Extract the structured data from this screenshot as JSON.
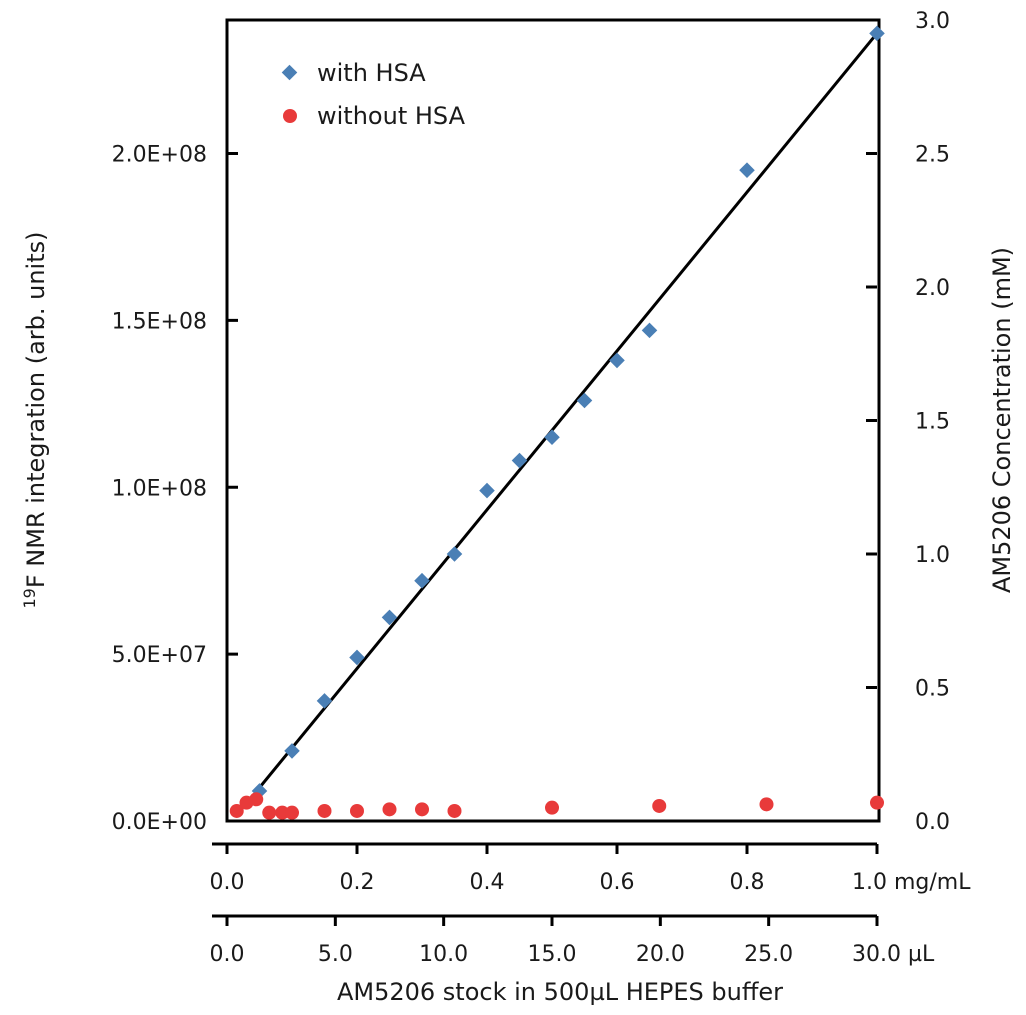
{
  "chart_data": {
    "type": "scatter",
    "left_axis": {
      "label_sup": "19",
      "label_main": "F NMR integration (arb. units)",
      "range": [
        0,
        240000000
      ],
      "ticks": [
        {
          "value": 0,
          "label": "0.0E+00"
        },
        {
          "value": 50000000,
          "label": "5.0E+07"
        },
        {
          "value": 100000000,
          "label": "1.0E+08"
        },
        {
          "value": 150000000,
          "label": "1.5E+08"
        },
        {
          "value": 200000000,
          "label": "2.0E+08"
        }
      ]
    },
    "right_axis": {
      "label": "AM5206 Concentration (mM)",
      "range": [
        0,
        3.0
      ],
      "ticks": [
        {
          "value": 0,
          "label": "0.0"
        },
        {
          "value": 0.5,
          "label": "0.5"
        },
        {
          "value": 1.0,
          "label": "1.0"
        },
        {
          "value": 1.5,
          "label": "1.5"
        },
        {
          "value": 2.0,
          "label": "2.0"
        },
        {
          "value": 2.5,
          "label": "2.5"
        },
        {
          "value": 3.0,
          "label": "3.0"
        }
      ]
    },
    "x_axis_mg": {
      "range": [
        0,
        1.0
      ],
      "ticks": [
        {
          "value": 0,
          "label": "0.0"
        },
        {
          "value": 0.2,
          "label": "0.2"
        },
        {
          "value": 0.4,
          "label": "0.4"
        },
        {
          "value": 0.6,
          "label": "0.6"
        },
        {
          "value": 0.8,
          "label": "0.8"
        },
        {
          "value": 1.0,
          "label": "1.0 mg/mL"
        }
      ]
    },
    "x_axis_ul": {
      "range": [
        0,
        30.0
      ],
      "ticks": [
        {
          "value": 0,
          "label": "0.0"
        },
        {
          "value": 5,
          "label": "5.0"
        },
        {
          "value": 10,
          "label": "10.0"
        },
        {
          "value": 15,
          "label": "15.0"
        },
        {
          "value": 20,
          "label": "20.0"
        },
        {
          "value": 25,
          "label": "25.0"
        },
        {
          "value": 30,
          "label": "30.0 µL"
        }
      ]
    },
    "xlabel": "AM5206 stock in 500µL HEPES buffer",
    "legend_position": "top-left",
    "series": [
      {
        "name": "with HSA",
        "marker": "diamond",
        "color": "#4a7fb5",
        "points": [
          {
            "x": 0.05,
            "y": 9000000
          },
          {
            "x": 0.1,
            "y": 21000000
          },
          {
            "x": 0.15,
            "y": 36000000
          },
          {
            "x": 0.2,
            "y": 49000000
          },
          {
            "x": 0.25,
            "y": 61000000
          },
          {
            "x": 0.3,
            "y": 72000000
          },
          {
            "x": 0.35,
            "y": 80000000
          },
          {
            "x": 0.4,
            "y": 99000000
          },
          {
            "x": 0.45,
            "y": 108000000
          },
          {
            "x": 0.5,
            "y": 115000000
          },
          {
            "x": 0.55,
            "y": 126000000
          },
          {
            "x": 0.6,
            "y": 138000000
          },
          {
            "x": 0.65,
            "y": 147000000
          },
          {
            "x": 0.8,
            "y": 195000000
          },
          {
            "x": 1.0,
            "y": 236000000
          }
        ]
      },
      {
        "name": "without HSA",
        "marker": "circle",
        "color": "#e83a3a",
        "points": [
          {
            "x": 0.015,
            "y": 3000000
          },
          {
            "x": 0.03,
            "y": 5500000
          },
          {
            "x": 0.045,
            "y": 6500000
          },
          {
            "x": 0.065,
            "y": 2500000
          },
          {
            "x": 0.085,
            "y": 2500000
          },
          {
            "x": 0.1,
            "y": 2500000
          },
          {
            "x": 0.15,
            "y": 3000000
          },
          {
            "x": 0.2,
            "y": 3000000
          },
          {
            "x": 0.25,
            "y": 3500000
          },
          {
            "x": 0.3,
            "y": 3500000
          },
          {
            "x": 0.35,
            "y": 3000000
          },
          {
            "x": 0.5,
            "y": 4000000
          },
          {
            "x": 0.665,
            "y": 4500000
          },
          {
            "x": 0.83,
            "y": 5000000
          },
          {
            "x": 1.0,
            "y": 5500000
          }
        ]
      }
    ],
    "fit_line": {
      "color": "#000000",
      "from": {
        "x": 0.05,
        "y": 10000000
      },
      "to": {
        "x": 1.0,
        "y": 236000000
      }
    }
  }
}
